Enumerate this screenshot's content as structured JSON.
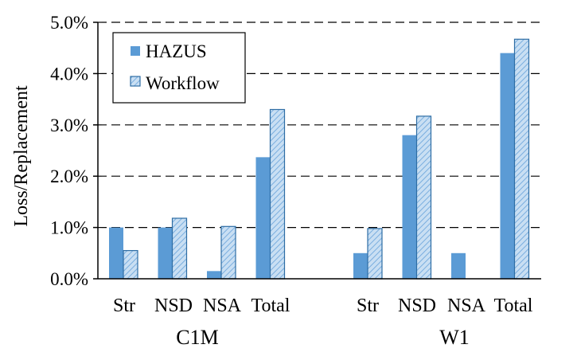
{
  "chart_data": {
    "type": "bar",
    "ylabel": "Loss/Replacement",
    "xlabel": "",
    "ylim": [
      0,
      5.0
    ],
    "yticks": [
      "0.0%",
      "1.0%",
      "2.0%",
      "3.0%",
      "4.0%",
      "5.0%"
    ],
    "grid": "dashed horizontal",
    "legend_position": "top-left",
    "groups": [
      {
        "name": "C1M",
        "categories": [
          "Str",
          "NSD",
          "NSA",
          "Total"
        ]
      },
      {
        "name": "W1",
        "categories": [
          "Str",
          "NSD",
          "NSA",
          "Total"
        ]
      }
    ],
    "series": [
      {
        "name": "HAZUS",
        "color": "#5b9bd5",
        "pattern": "solid",
        "values": [
          [
            1.0,
            1.0,
            0.15,
            2.37
          ],
          [
            0.5,
            2.8,
            0.5,
            4.4
          ]
        ]
      },
      {
        "name": "Workflow",
        "color": "#bdd7ee",
        "pattern": "diagonal-hatch",
        "values": [
          [
            0.55,
            1.18,
            1.02,
            3.3
          ],
          [
            0.98,
            3.17,
            0.0,
            4.67
          ]
        ]
      }
    ]
  }
}
